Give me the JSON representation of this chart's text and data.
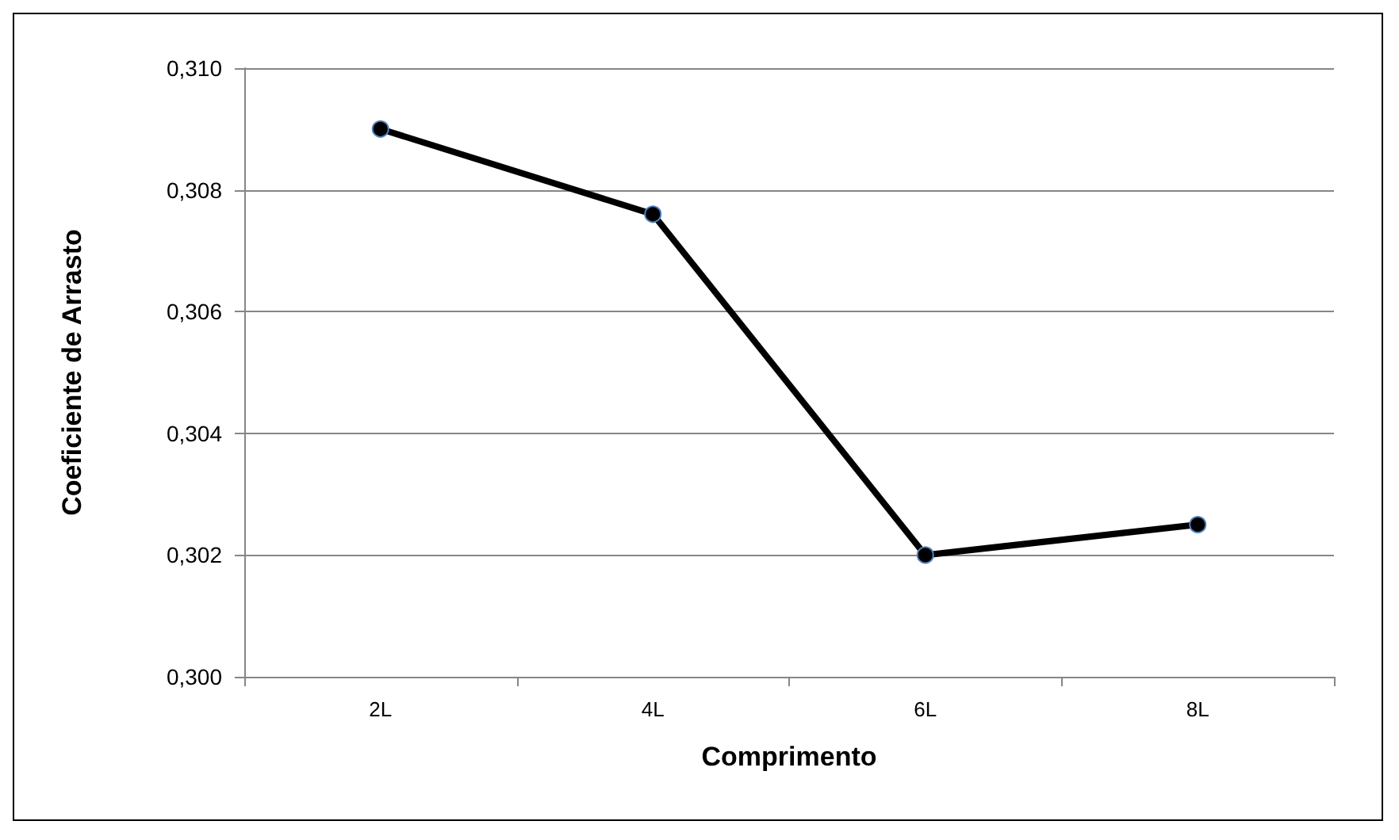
{
  "chart_data": {
    "type": "line",
    "xlabel": "Comprimento",
    "ylabel": "Coeficiente de Arrasto",
    "categories": [
      "2L",
      "4L",
      "6L",
      "8L"
    ],
    "series": [
      {
        "color": "#000000",
        "values": [
          0.309,
          0.3076,
          0.302,
          0.3025
        ]
      }
    ],
    "ylim": [
      0.3,
      0.31
    ],
    "yticks": [
      {
        "value": 0.3,
        "label": "0,300"
      },
      {
        "value": 0.302,
        "label": "0,302"
      },
      {
        "value": 0.304,
        "label": "0,304"
      },
      {
        "value": 0.306,
        "label": "0,306"
      },
      {
        "value": 0.308,
        "label": "0,308"
      },
      {
        "value": 0.31,
        "label": "0,310"
      }
    ],
    "grid": "y",
    "marker": "circle",
    "line_style": "solid"
  }
}
